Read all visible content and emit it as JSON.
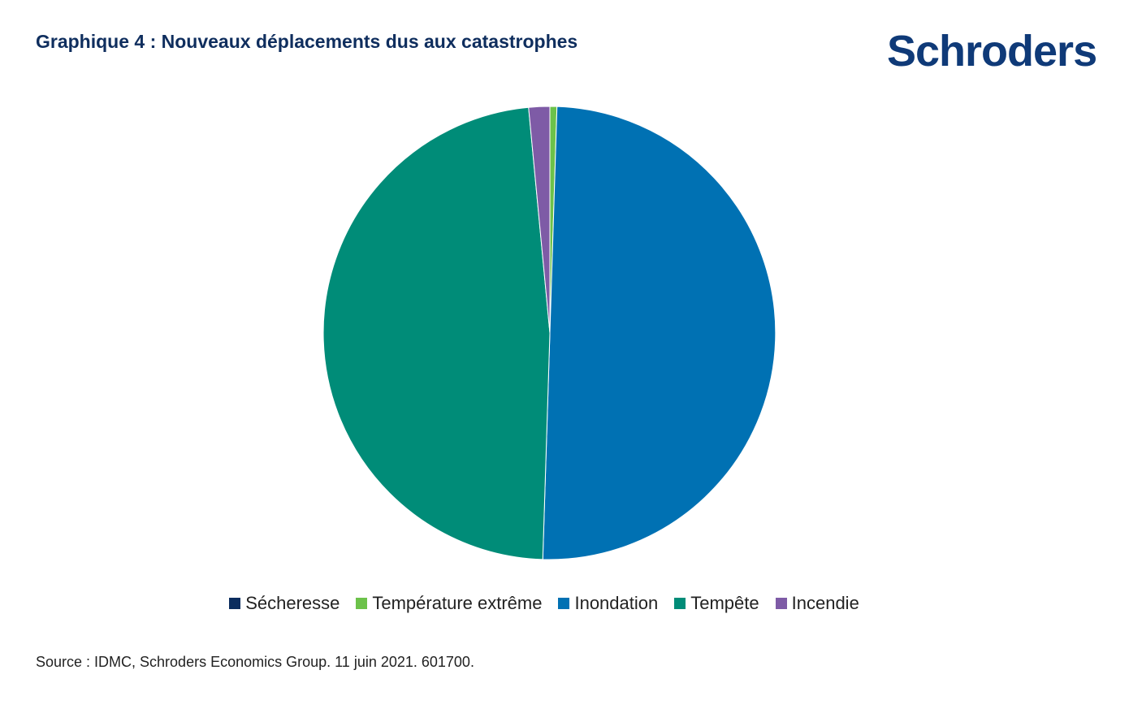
{
  "header": {
    "title": "Graphique 4 : Nouveaux déplacements dus aux catastrophes",
    "logo_text": "Schroders"
  },
  "footer": {
    "source": "Source : IDMC, Schroders Economics Group. 11 juin 2021. 601700."
  },
  "colors": {
    "title": "#0f2e5e",
    "logo": "#0f3a78"
  },
  "chart_data": {
    "type": "pie",
    "title": "Graphique 4 : Nouveaux déplacements dus aux catastrophes",
    "legend_position": "bottom",
    "start_angle_deg": 0,
    "direction": "clockwise",
    "slices": [
      {
        "name": "Sécheresse",
        "value": 0.0,
        "color": "#0b2d5e"
      },
      {
        "name": "Température extrême",
        "value": 0.5,
        "color": "#6cc24a"
      },
      {
        "name": "Inondation",
        "value": 50.0,
        "color": "#0071b3"
      },
      {
        "name": "Tempête",
        "value": 48.0,
        "color": "#008c78"
      },
      {
        "name": "Incendie",
        "value": 1.5,
        "color": "#7e5ba6"
      }
    ]
  }
}
